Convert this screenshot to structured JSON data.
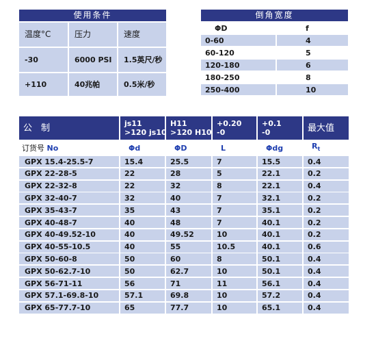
{
  "conditions": {
    "title": "使用条件",
    "headers": [
      "温度",
      "压力",
      "速度"
    ],
    "temp_unit": "°C",
    "rows": [
      [
        "-30",
        "6000 PSI",
        "1.5英尺/秒"
      ],
      [
        "+110",
        "40兆帕",
        "0.5米/秒"
      ]
    ]
  },
  "chamfer": {
    "title": "倒角宽度",
    "headers": [
      "ΦD",
      "f"
    ],
    "rows": [
      [
        "0-60",
        "4"
      ],
      [
        "60-120",
        "5"
      ],
      [
        "120-180",
        "6"
      ],
      [
        "180-250",
        "8"
      ],
      [
        "250-400",
        "10"
      ]
    ]
  },
  "sizes": {
    "headers": [
      [
        "公　制"
      ],
      [
        "js11",
        ">120 js10"
      ],
      [
        "H11",
        ">120 H10"
      ],
      [
        "+0.20",
        "-0"
      ],
      [
        "+0.1",
        "-0"
      ],
      [
        "最大值"
      ]
    ],
    "subheaders": [
      [
        "订货号 ",
        "No"
      ],
      [
        "Φd"
      ],
      [
        "ΦD"
      ],
      [
        "L"
      ],
      [
        "Φdg"
      ],
      [
        "R",
        "t"
      ]
    ],
    "rows": [
      [
        "GPX 15.4-25.5-7",
        "15.4",
        "25.5",
        "7",
        "15.5",
        "0.4"
      ],
      [
        "GPX 22-28-5",
        "22",
        "28",
        "5",
        "22.1",
        "0.2"
      ],
      [
        "GPX 22-32-8",
        "22",
        "32",
        "8",
        "22.1",
        "0.4"
      ],
      [
        "GPX 32-40-7",
        "32",
        "40",
        "7",
        "32.1",
        "0.2"
      ],
      [
        "GPX 35-43-7",
        "35",
        "43",
        "7",
        "35.1",
        "0.2"
      ],
      [
        "GPX 40-48-7",
        "40",
        "48",
        "7",
        "40.1",
        "0.2"
      ],
      [
        "GPX 40-49.52-10",
        "40",
        "49.52",
        "10",
        "40.1",
        "0.2"
      ],
      [
        "GPX 40-55-10.5",
        "40",
        "55",
        "10.5",
        "40.1",
        "0.6"
      ],
      [
        "GPX 50-60-8",
        "50",
        "60",
        "8",
        "50.1",
        "0.4"
      ],
      [
        "GPX 50-62.7-10",
        "50",
        "62.7",
        "10",
        "50.1",
        "0.4"
      ],
      [
        "GPX 56-71-11",
        "56",
        "71",
        "11",
        "56.1",
        "0.4"
      ],
      [
        "GPX 57.1-69.8-10",
        "57.1",
        "69.8",
        "10",
        "57.2",
        "0.4"
      ],
      [
        "GPX 65-77.7-10",
        "65",
        "77.7",
        "10",
        "65.1",
        "0.4"
      ]
    ]
  }
}
